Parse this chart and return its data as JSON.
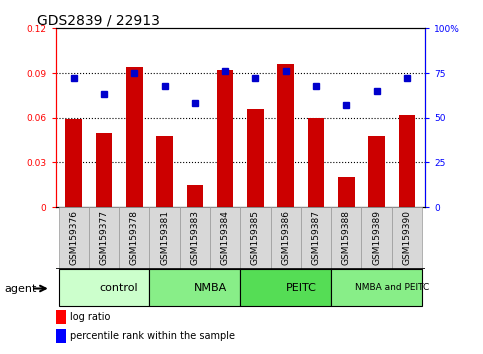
{
  "title": "GDS2839 / 22913",
  "samples": [
    "GSM159376",
    "GSM159377",
    "GSM159378",
    "GSM159381",
    "GSM159383",
    "GSM159384",
    "GSM159385",
    "GSM159386",
    "GSM159387",
    "GSM159388",
    "GSM159389",
    "GSM159390"
  ],
  "log_ratio": [
    0.059,
    0.05,
    0.094,
    0.048,
    0.015,
    0.092,
    0.066,
    0.096,
    0.06,
    0.02,
    0.048,
    0.062
  ],
  "percentile_rank": [
    72,
    63,
    75,
    68,
    58,
    76,
    72,
    76,
    68,
    57,
    65,
    72
  ],
  "groups": [
    {
      "label": "control",
      "start": 0,
      "end": 3,
      "color": "#ccffcc"
    },
    {
      "label": "NMBA",
      "start": 3,
      "end": 6,
      "color": "#88ee88"
    },
    {
      "label": "PEITC",
      "start": 6,
      "end": 9,
      "color": "#55dd55"
    },
    {
      "label": "NMBA and PEITC",
      "start": 9,
      "end": 12,
      "color": "#88ee88"
    }
  ],
  "bar_color": "#cc0000",
  "dot_color": "#0000cc",
  "left_ylim": [
    0,
    0.12
  ],
  "right_ylim": [
    0,
    100
  ],
  "left_yticks": [
    0,
    0.03,
    0.06,
    0.09,
    0.12
  ],
  "right_yticks": [
    0,
    25,
    50,
    75,
    100
  ],
  "left_yticklabels": [
    "0",
    "0.03",
    "0.06",
    "0.09",
    "0.12"
  ],
  "right_yticklabels": [
    "0",
    "25",
    "50",
    "75",
    "100%"
  ],
  "grid_values": [
    0.03,
    0.06,
    0.09
  ],
  "bar_width": 0.55,
  "agent_label": "agent",
  "legend_log_ratio": "log ratio",
  "legend_percentile": "percentile rank within the sample",
  "title_fontsize": 10,
  "tick_fontsize": 6.5,
  "group_label_fontsize": 8,
  "agent_fontsize": 8,
  "legend_fontsize": 7,
  "sample_box_color": "#d8d8d8",
  "sample_box_edge": "#999999"
}
